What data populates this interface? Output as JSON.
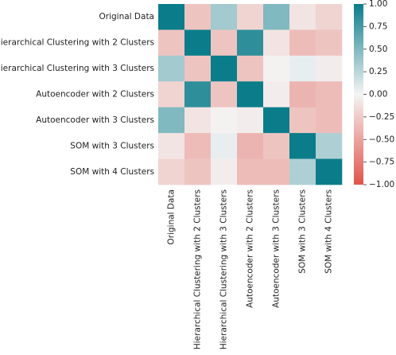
{
  "chart_data": {
    "type": "heatmap",
    "title": "",
    "xlabel": "",
    "ylabel": "",
    "labels": [
      "Original Data",
      "Hierarchical Clustering with 2 Clusters",
      "Hierarchical Clustering with 3 Clusters",
      "Autoencoder with 2 Clusters",
      "Autoencoder with 3 Clusters",
      "SOM with 3 Clusters",
      "SOM with 4 Clusters"
    ],
    "values": [
      [
        1.0,
        -0.3,
        0.35,
        -0.2,
        0.5,
        -0.1,
        -0.2
      ],
      [
        -0.3,
        1.0,
        -0.3,
        0.85,
        -0.1,
        -0.35,
        -0.3
      ],
      [
        0.35,
        -0.3,
        1.0,
        -0.3,
        -0.02,
        0.05,
        -0.05
      ],
      [
        -0.2,
        0.85,
        -0.3,
        1.0,
        -0.05,
        -0.4,
        -0.35
      ],
      [
        0.5,
        -0.1,
        -0.02,
        -0.05,
        1.0,
        -0.3,
        -0.35
      ],
      [
        -0.1,
        -0.35,
        0.05,
        -0.4,
        -0.3,
        1.0,
        0.3
      ],
      [
        -0.2,
        -0.3,
        -0.05,
        -0.35,
        -0.35,
        0.3,
        1.0
      ]
    ],
    "colorbar": {
      "range": [
        -1.0,
        1.0
      ],
      "ticks": [
        1.0,
        0.75,
        0.5,
        0.25,
        0.0,
        -0.25,
        -0.5,
        -0.75,
        -1.0
      ],
      "tick_labels": [
        "1.00",
        "0.75",
        "0.50",
        "0.25",
        "0.00",
        "−0.25",
        "−0.50",
        "−0.75",
        "−1.00"
      ],
      "colormap": "diverging",
      "color_low": "#e0544a",
      "color_mid": "#f4f4f4",
      "color_high": "#0b7d8a"
    },
    "grid": false,
    "legend": "right (colorbar)"
  }
}
